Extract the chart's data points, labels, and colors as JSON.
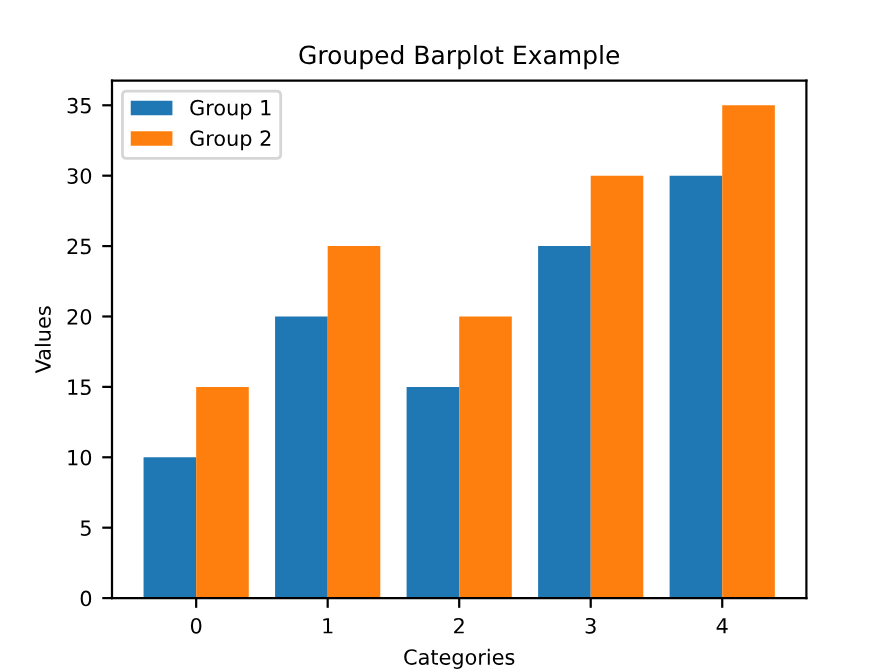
{
  "chart_data": {
    "type": "bar",
    "title": "Grouped Barplot Example",
    "xlabel": "Categories",
    "ylabel": "Values",
    "categories": [
      "0",
      "1",
      "2",
      "3",
      "4"
    ],
    "series": [
      {
        "name": "Group 1",
        "color": "#1f77b4",
        "values": [
          10,
          20,
          15,
          25,
          30
        ]
      },
      {
        "name": "Group 2",
        "color": "#ff7f0e",
        "values": [
          15,
          25,
          20,
          30,
          35
        ]
      }
    ],
    "ylim": [
      0,
      36.75
    ],
    "yticks": [
      0,
      5,
      10,
      15,
      20,
      25,
      30,
      35
    ],
    "legend": "top left",
    "grid": false
  }
}
